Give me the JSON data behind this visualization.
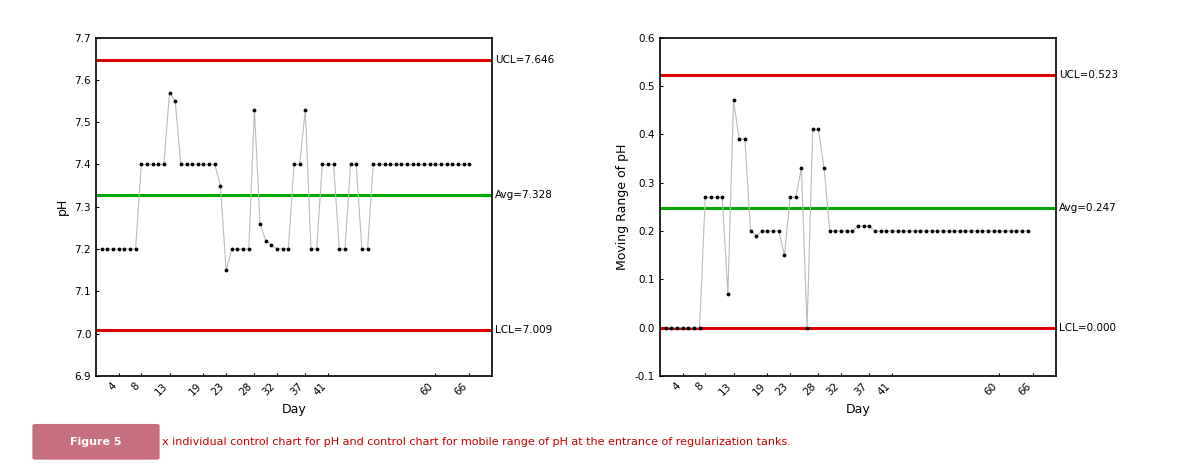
{
  "chart1": {
    "ylabel": "pH",
    "xlabel": "Day",
    "ucl": 7.646,
    "lcl": 7.009,
    "avg": 7.328,
    "ylim": [
      6.9,
      7.7
    ],
    "yticks": [
      6.9,
      7.0,
      7.1,
      7.2,
      7.3,
      7.4,
      7.5,
      7.6,
      7.7
    ],
    "xtick_labels": [
      "4",
      "8",
      "13",
      "19",
      "23",
      "28",
      "32",
      "37",
      "41",
      "60",
      "66"
    ],
    "xtick_positions": [
      4,
      8,
      13,
      19,
      23,
      28,
      32,
      37,
      41,
      60,
      66
    ],
    "x_values": [
      1,
      2,
      3,
      4,
      5,
      6,
      7,
      8,
      9,
      10,
      11,
      12,
      13,
      14,
      15,
      16,
      17,
      18,
      19,
      20,
      21,
      22,
      23,
      24,
      25,
      26,
      27,
      28,
      29,
      30,
      31,
      32,
      33,
      34,
      35,
      36,
      37,
      38,
      39,
      40,
      41,
      42,
      43,
      44,
      45,
      46,
      47,
      48,
      49,
      50,
      51,
      52,
      53,
      54,
      55,
      56,
      57,
      58,
      59,
      60,
      61,
      62,
      63,
      64,
      65,
      66
    ],
    "y_values": [
      7.2,
      7.2,
      7.2,
      7.2,
      7.2,
      7.2,
      7.2,
      7.4,
      7.4,
      7.4,
      7.4,
      7.4,
      7.57,
      7.55,
      7.4,
      7.4,
      7.4,
      7.4,
      7.4,
      7.4,
      7.4,
      7.35,
      7.15,
      7.2,
      7.2,
      7.2,
      7.2,
      7.53,
      7.26,
      7.22,
      7.21,
      7.2,
      7.2,
      7.2,
      7.4,
      7.4,
      7.53,
      7.2,
      7.2,
      7.4,
      7.4,
      7.4,
      7.2,
      7.2,
      7.4,
      7.4,
      7.2,
      7.2,
      7.4,
      7.4,
      7.4,
      7.4,
      7.4,
      7.4,
      7.4,
      7.4,
      7.4,
      7.4,
      7.4,
      7.4,
      7.4,
      7.4,
      7.4,
      7.4,
      7.4,
      7.4
    ],
    "ucl_label": "UCL=7.646",
    "lcl_label": "LCL=7.009",
    "avg_label": "Avg=7.328",
    "line_color": "#bbbbbb",
    "ucl_color": "#dd0000",
    "lcl_color": "#dd0000",
    "avg_color": "#00aa00",
    "xlim": [
      0,
      70
    ]
  },
  "chart2": {
    "ylabel": "Moving Range of pH",
    "xlabel": "Day",
    "ucl": 0.523,
    "lcl": 0.0,
    "avg": 0.247,
    "ylim": [
      -0.1,
      0.6
    ],
    "yticks": [
      -0.1,
      0.0,
      0.1,
      0.2,
      0.3,
      0.4,
      0.5,
      0.6
    ],
    "xtick_labels": [
      "4",
      "8",
      "13",
      "19",
      "23",
      "28",
      "32",
      "37",
      "41",
      "60",
      "66"
    ],
    "xtick_positions": [
      4,
      8,
      13,
      19,
      23,
      28,
      32,
      37,
      41,
      60,
      66
    ],
    "x_values": [
      1,
      2,
      3,
      4,
      5,
      6,
      7,
      8,
      9,
      10,
      11,
      12,
      13,
      14,
      15,
      16,
      17,
      18,
      19,
      20,
      21,
      22,
      23,
      24,
      25,
      26,
      27,
      28,
      29,
      30,
      31,
      32,
      33,
      34,
      35,
      36,
      37,
      38,
      39,
      40,
      41,
      42,
      43,
      44,
      45,
      46,
      47,
      48,
      49,
      50,
      51,
      52,
      53,
      54,
      55,
      56,
      57,
      58,
      59,
      60,
      61,
      62,
      63,
      64,
      65
    ],
    "y_values": [
      0.0,
      0.0,
      0.0,
      0.0,
      0.0,
      0.0,
      0.0,
      0.27,
      0.27,
      0.27,
      0.27,
      0.07,
      0.47,
      0.39,
      0.39,
      0.2,
      0.19,
      0.2,
      0.2,
      0.2,
      0.2,
      0.15,
      0.27,
      0.27,
      0.33,
      0.0,
      0.41,
      0.41,
      0.33,
      0.2,
      0.2,
      0.2,
      0.2,
      0.2,
      0.21,
      0.21,
      0.21,
      0.2,
      0.2,
      0.2,
      0.2,
      0.2,
      0.2,
      0.2,
      0.2,
      0.2,
      0.2,
      0.2,
      0.2,
      0.2,
      0.2,
      0.2,
      0.2,
      0.2,
      0.2,
      0.2,
      0.2,
      0.2,
      0.2,
      0.2,
      0.2,
      0.2,
      0.2,
      0.2,
      0.2
    ],
    "ucl_label": "UCL=0.523",
    "lcl_label": "LCL=0.000",
    "avg_label": "Avg=0.247",
    "line_color": "#bbbbbb",
    "ucl_color": "#dd0000",
    "lcl_color": "#dd0000",
    "avg_color": "#00aa00",
    "xlim": [
      0,
      70
    ]
  },
  "caption_bold": "Figure 5",
  "caption_text": "x individual control chart for pH and control chart for mobile range of pH at the entrance of regularization tanks.",
  "caption_highlight_color": "#c97080",
  "outer_border_color": "#d4879a"
}
